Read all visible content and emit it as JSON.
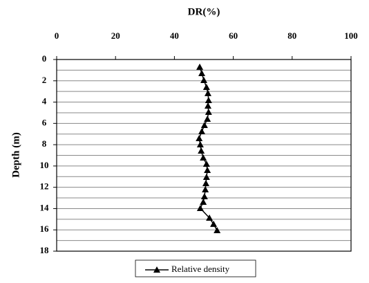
{
  "chart_data": {
    "type": "line",
    "title": "DR(%)",
    "y_label": "Depth (m)",
    "xlim": [
      0,
      100
    ],
    "xticks": [
      0,
      20,
      40,
      60,
      80,
      100
    ],
    "ylim": [
      0,
      18
    ],
    "yticks": [
      0,
      2,
      4,
      6,
      8,
      10,
      12,
      14,
      16,
      18
    ],
    "y_inverted": true,
    "grid": true,
    "y_minor_ticks": [
      1,
      3,
      5,
      7,
      9,
      11,
      13,
      15,
      17
    ],
    "legend": "bottom",
    "series": [
      {
        "name": "Relative density",
        "color": "#000000",
        "marker": "triangle",
        "x": [
          48.6,
          49.3,
          50.0,
          50.9,
          51.4,
          51.6,
          51.4,
          51.6,
          51.2,
          50.2,
          49.3,
          48.4,
          48.8,
          49.1,
          49.8,
          50.9,
          51.2,
          50.9,
          50.7,
          50.5,
          50.2,
          49.8,
          48.8,
          51.9,
          53.3,
          54.5
        ],
        "values": [
          0.71,
          1.3,
          1.95,
          2.6,
          3.18,
          3.83,
          4.35,
          4.94,
          5.59,
          6.17,
          6.76,
          7.41,
          7.99,
          8.58,
          9.23,
          9.81,
          10.4,
          11.05,
          11.63,
          12.22,
          12.87,
          13.39,
          13.97,
          14.88,
          15.46,
          16.05
        ]
      }
    ]
  }
}
